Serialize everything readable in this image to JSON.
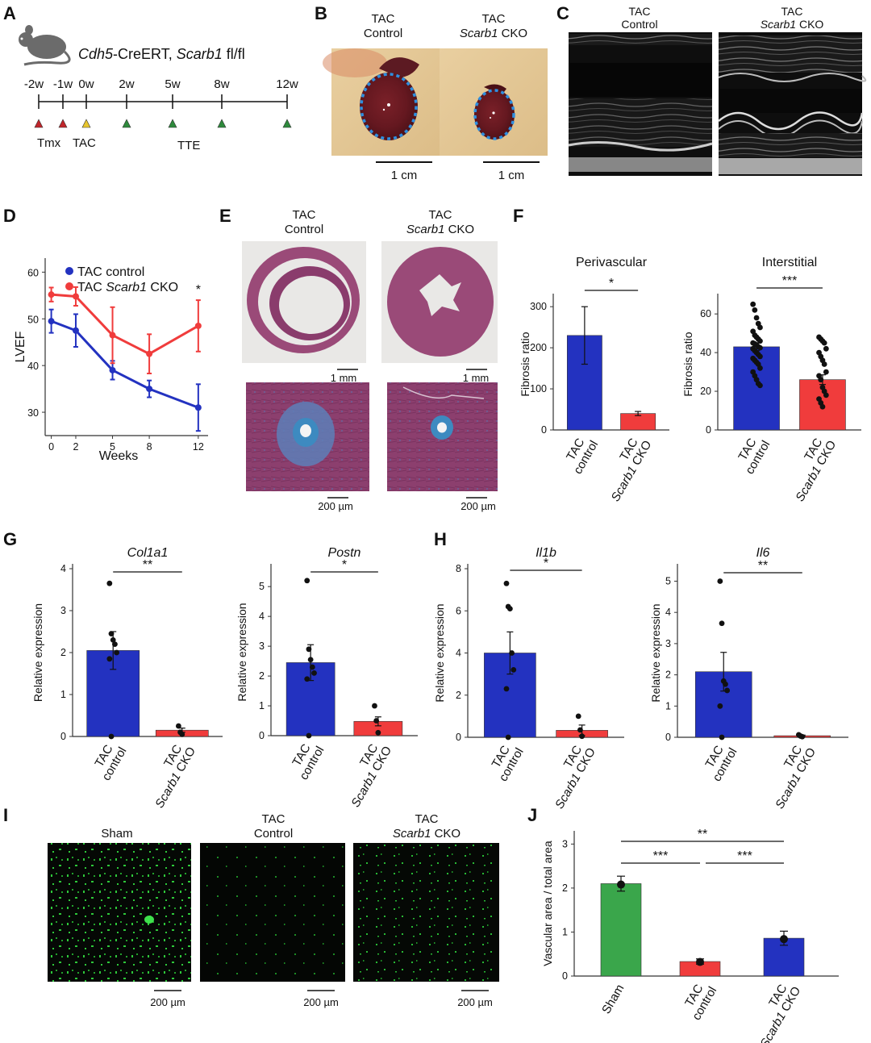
{
  "panel_labels": [
    "A",
    "B",
    "C",
    "D",
    "E",
    "F",
    "G",
    "H",
    "I",
    "J"
  ],
  "colors": {
    "control": "#2332c0",
    "cko": "#f03c3c",
    "sham": "#3aa64b",
    "scale_dot": "#2e8fe0"
  },
  "panelA": {
    "genotype_italic": "Cdh5",
    "genotype_rest": "-CreERT, ",
    "gene_italic": "Scarb1",
    "gene_rest": " fl/fl",
    "timeline_labels": [
      "-2w",
      "-1w",
      "0w",
      "2w",
      "5w",
      "8w",
      "12w"
    ],
    "tmx": "Tmx",
    "tac": "TAC",
    "tte": "TTE",
    "marker_colors": [
      "#c0262b",
      "#c0262b",
      "#e8c62e",
      "#2e8a3c",
      "#2e8a3c",
      "#2e8a3c",
      "#2e8a3c"
    ]
  },
  "panelB": {
    "tac1": "TAC",
    "ctrl": "Control",
    "tac2": "TAC",
    "cko_italic": "Scarb1",
    "cko_rest": " CKO",
    "scale": "1 cm"
  },
  "panelC": {
    "tac1": "TAC",
    "ctrl": "Control",
    "tac2": "TAC",
    "cko_italic": "Scarb1",
    "cko_rest": " CKO"
  },
  "panelE": {
    "tac1": "TAC",
    "ctrl": "Control",
    "tac2": "TAC",
    "cko_italic": "Scarb1",
    "cko_rest": " CKO",
    "scale_mm": "1 mm",
    "scale_um": "200 µm"
  },
  "panelI": {
    "sham": "Sham",
    "tac1": "TAC",
    "ctrl": "Control",
    "tac2": "TAC",
    "cko_italic": "Scarb1",
    "cko_rest": " CKO",
    "scale_um": "200 µm"
  },
  "common": {
    "tac": "TAC",
    "control": "control",
    "sham": "Sham",
    "cko_italic": "Scarb1",
    "cko_rest": " CKO",
    "rel_expr": "Relative expression",
    "fib_ratio": "Fibrosis ratio"
  },
  "chart_data": [
    {
      "panel": "D",
      "type": "line",
      "xlabel": "Weeks",
      "ylabel": "LVEF",
      "x": [
        0,
        2,
        5,
        8,
        12
      ],
      "xlim": [
        -0.5,
        12.8
      ],
      "ylim": [
        25,
        63
      ],
      "yticks": [
        30,
        40,
        50,
        60
      ],
      "series": [
        {
          "name": "TAC control",
          "values": [
            49.5,
            47.5,
            39,
            35,
            31
          ],
          "err": [
            2.5,
            3.5,
            2,
            1.8,
            5
          ]
        },
        {
          "name": "TAC Scarb1 CKO",
          "values": [
            55.2,
            54.8,
            46.5,
            42.5,
            48.5
          ],
          "err": [
            1.5,
            2,
            6,
            4.2,
            5.5
          ]
        }
      ],
      "annotation": "*"
    },
    {
      "panel": "F",
      "type": "bar",
      "title": "Perivascular",
      "ylabel": "Fibrosis ratio",
      "ylim": [
        0,
        320
      ],
      "yticks": [
        0,
        100,
        200,
        300
      ],
      "bars": [
        {
          "value": 230,
          "err": 70
        },
        {
          "value": 40,
          "err": 5
        }
      ],
      "points": [
        [],
        []
      ],
      "significance": "*"
    },
    {
      "panel": "F",
      "type": "bar",
      "title": "Interstitial",
      "ylabel": "Fibrosis ratio",
      "ylim": [
        0,
        68
      ],
      "yticks": [
        0,
        20,
        40,
        60
      ],
      "bars": [
        {
          "value": 43,
          "err": 2
        },
        {
          "value": 26,
          "err": 2.5
        }
      ],
      "points": [
        [
          65,
          62,
          58,
          55,
          53,
          51,
          49,
          48,
          47,
          46,
          45,
          44.5,
          44,
          43,
          42.5,
          42,
          41,
          40,
          39,
          38,
          37,
          36,
          35,
          34,
          32,
          30,
          28,
          26,
          24,
          23
        ],
        [
          48,
          47,
          46,
          45,
          42,
          40,
          38,
          36,
          34,
          30,
          28,
          26,
          22,
          20,
          18,
          16,
          14,
          12
        ]
      ],
      "significance": "***"
    },
    {
      "panel": "G",
      "type": "bar",
      "title": "Col1a1",
      "ylabel": "Relative expression",
      "ylim": [
        0,
        4
      ],
      "yticks": [
        0,
        1,
        2,
        3,
        4
      ],
      "bars": [
        {
          "value": 2.05,
          "err": 0.45
        },
        {
          "value": 0.15,
          "err": 0.05
        }
      ],
      "points": [
        [
          3.65,
          2.45,
          2.3,
          2.2,
          2.0,
          1.85,
          0
        ],
        [
          0.25,
          0.1,
          0.05
        ]
      ],
      "significance": "**"
    },
    {
      "panel": "G",
      "type": "bar",
      "title": "Postn",
      "ylabel": "Relative expression",
      "ylim": [
        0,
        5.6
      ],
      "yticks": [
        0,
        1,
        2,
        3,
        4,
        5
      ],
      "bars": [
        {
          "value": 2.45,
          "err": 0.6
        },
        {
          "value": 0.48,
          "err": 0.15
        }
      ],
      "points": [
        [
          5.2,
          2.9,
          2.55,
          2.3,
          2.1,
          1.9,
          0
        ],
        [
          1.0,
          0.5,
          0.1
        ]
      ],
      "significance": "*"
    },
    {
      "panel": "H",
      "type": "bar",
      "title": "Il1b",
      "ylabel": "Relative expression",
      "ylim": [
        0,
        8
      ],
      "yticks": [
        0,
        2,
        4,
        6,
        8
      ],
      "bars": [
        {
          "value": 4.0,
          "err": 1.0
        },
        {
          "value": 0.33,
          "err": 0.25
        }
      ],
      "points": [
        [
          7.3,
          6.2,
          6.1,
          4.0,
          3.2,
          2.3,
          0
        ],
        [
          1.0,
          0.35,
          0.05
        ]
      ],
      "significance": "*"
    },
    {
      "panel": "H",
      "type": "bar",
      "title": "Il6",
      "ylabel": "Relative expression",
      "ylim": [
        0,
        5.4
      ],
      "yticks": [
        0,
        1,
        2,
        3,
        4,
        5
      ],
      "bars": [
        {
          "value": 2.1,
          "err": 0.62
        },
        {
          "value": 0.05,
          "err": 0.02
        }
      ],
      "points": [
        [
          5.0,
          3.65,
          1.8,
          1.7,
          1.5,
          1.0,
          0
        ],
        [
          0.08,
          0.04,
          0.02
        ]
      ],
      "significance": "**"
    },
    {
      "panel": "J",
      "type": "bar",
      "ylabel": "Vascular area / total area",
      "ylim": [
        0,
        3.3
      ],
      "yticks": [
        0,
        1,
        2,
        3
      ],
      "categories": [
        "Sham",
        "TAC control",
        "TAC Scarb1 CKO"
      ],
      "bars": [
        {
          "value": 2.1,
          "err": 0.17,
          "mean_pt": 2.08
        },
        {
          "value": 0.33,
          "err": 0.06,
          "mean_pt": 0.32
        },
        {
          "value": 0.86,
          "err": 0.16,
          "mean_pt": 0.84
        }
      ],
      "significance": [
        [
          "Sham",
          "TAC control",
          "***"
        ],
        [
          "TAC control",
          "TAC Scarb1 CKO",
          "***"
        ],
        [
          "Sham",
          "TAC Scarb1 CKO",
          "**"
        ]
      ]
    }
  ]
}
